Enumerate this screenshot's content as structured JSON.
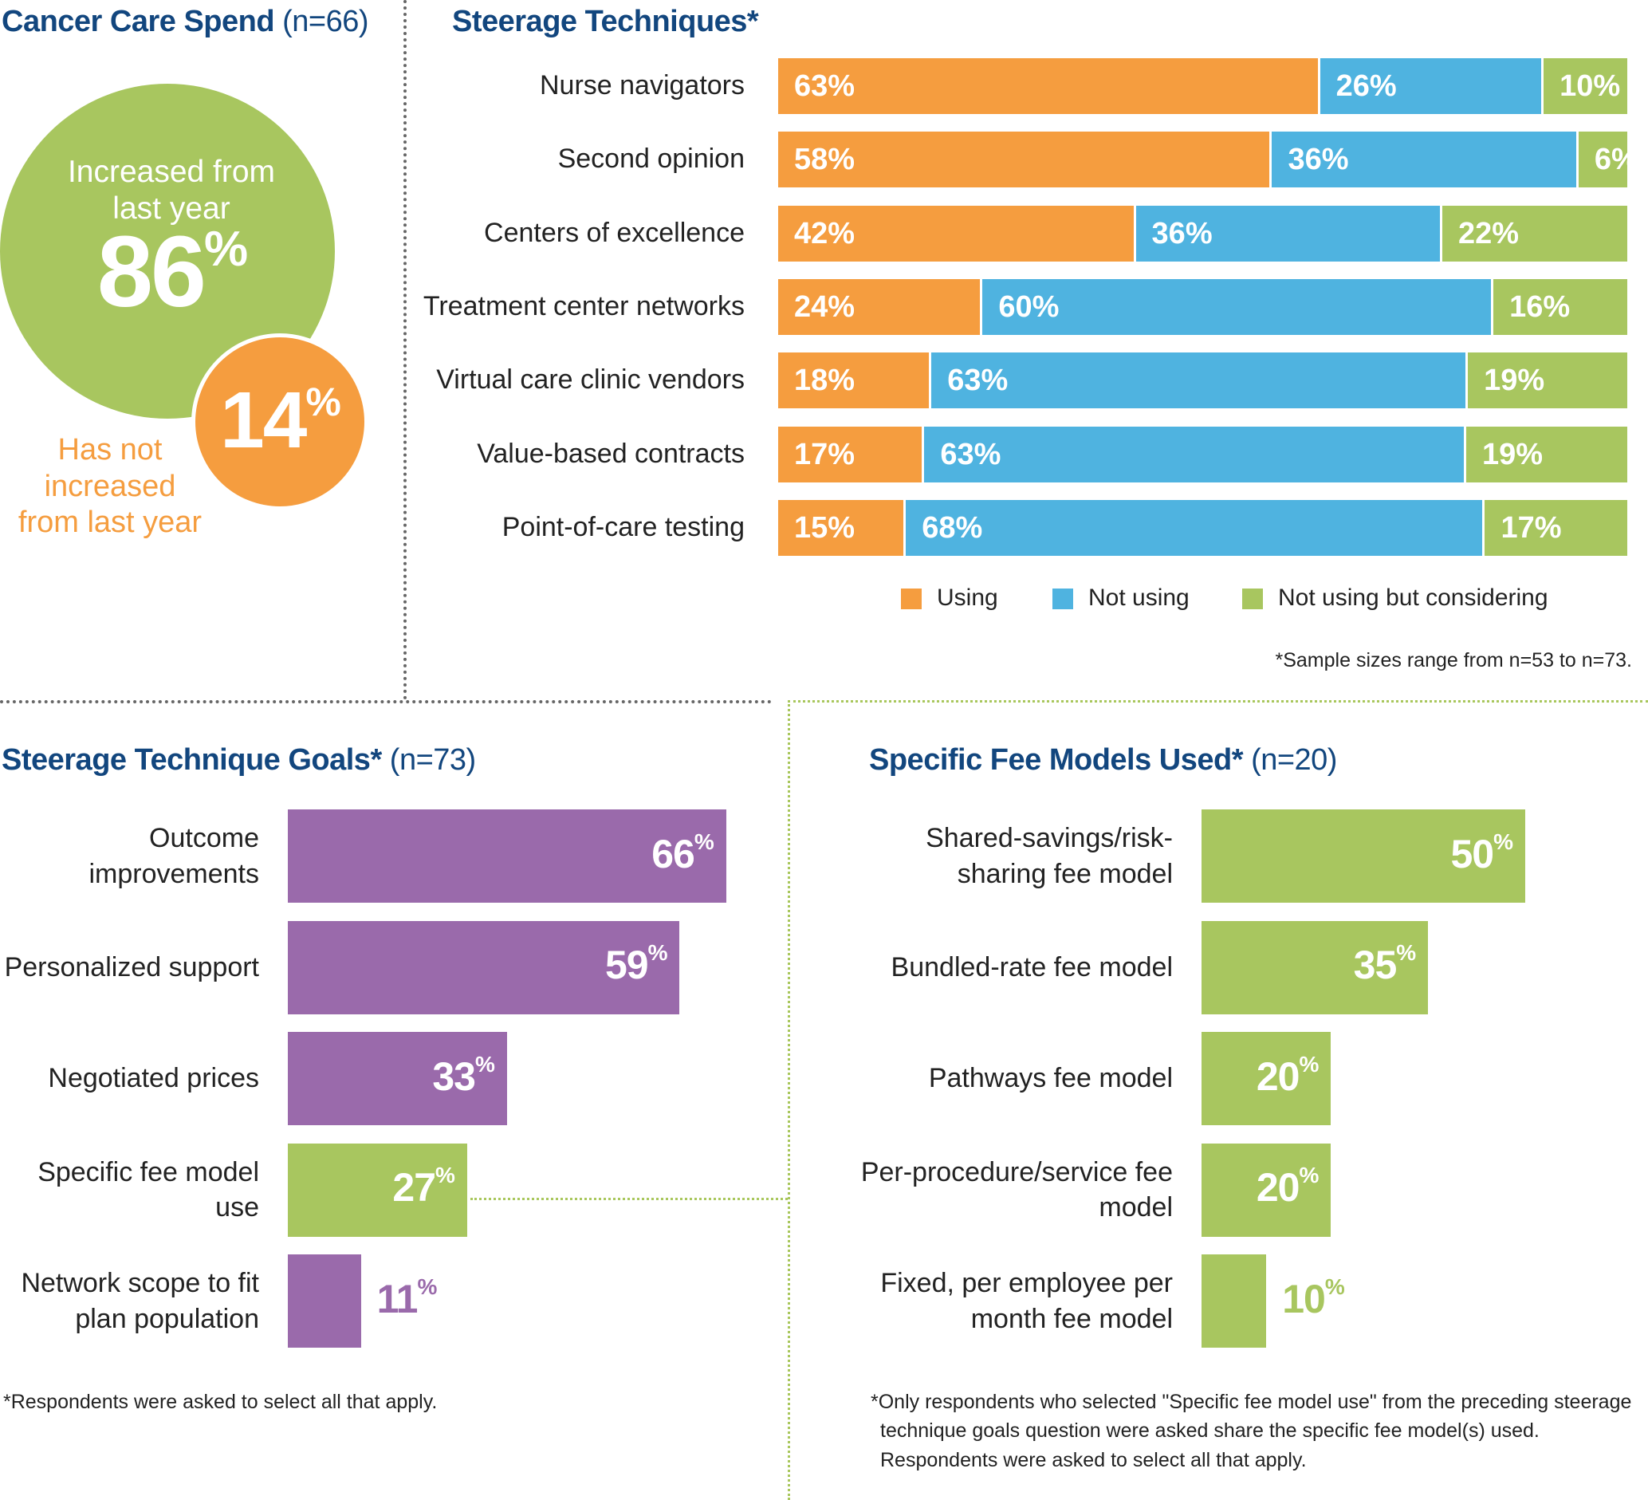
{
  "colors": {
    "using": "#f59d3f",
    "not_using": "#4fb3e0",
    "considering": "#a8c65f",
    "goals": "#9a6aab",
    "fee": "#a8c65f",
    "title": "#12467e"
  },
  "cancer_spend": {
    "title": "Cancer Care Spend",
    "n": "(n=66)",
    "increased_label_1": "Increased from",
    "increased_label_2": "last year",
    "increased_value": "86",
    "not_increased_value": "14",
    "percent_sign": "%",
    "not_increased_label_1": "Has not",
    "not_increased_label_2": "increased",
    "not_increased_label_3": "from last year"
  },
  "steerage": {
    "title": "Steerage Techniques*",
    "legend": [
      "Using",
      "Not using",
      "Not using but considering"
    ],
    "footnote": "*Sample sizes range from n=53 to n=73."
  },
  "goals": {
    "title": "Steerage Technique Goals*",
    "n": "(n=73)",
    "footnote": "*Respondents were asked to select all that apply."
  },
  "fees": {
    "title": "Specific Fee Models Used*",
    "n": "(n=20)",
    "footnote_1": "*Only respondents who selected \"Specific fee model use\" from the preceding steerage",
    "footnote_2": "technique goals question were asked share the specific fee model(s) used.",
    "footnote_3": "Respondents were asked to select all that apply."
  },
  "chart_data": [
    {
      "type": "pie",
      "title": "Cancer Care Spend",
      "categories": [
        "Increased from last year",
        "Has not increased from last year"
      ],
      "values": [
        86,
        14
      ]
    },
    {
      "type": "bar",
      "stacked": true,
      "orientation": "horizontal",
      "title": "Steerage Techniques*",
      "categories": [
        "Nurse navigators",
        "Second opinion",
        "Centers of excellence",
        "Treatment center networks",
        "Virtual care clinic vendors",
        "Value-based contracts",
        "Point-of-care testing"
      ],
      "series": [
        {
          "name": "Using",
          "values": [
            63,
            58,
            42,
            24,
            18,
            17,
            15
          ]
        },
        {
          "name": "Not using",
          "values": [
            26,
            36,
            36,
            60,
            63,
            63,
            68
          ]
        },
        {
          "name": "Not using but considering",
          "values": [
            10,
            6,
            22,
            16,
            19,
            19,
            17
          ]
        }
      ],
      "legend": "bottom"
    },
    {
      "type": "bar",
      "orientation": "horizontal",
      "title": "Steerage Technique Goals*",
      "categories": [
        "Outcome improvements",
        "Personalized support",
        "Negotiated prices",
        "Specific fee model use",
        "Network scope to fit plan population"
      ],
      "values": [
        66,
        59,
        33,
        27,
        11
      ]
    },
    {
      "type": "bar",
      "orientation": "horizontal",
      "title": "Specific Fee Models Used*",
      "categories": [
        "Shared-savings/risk-sharing fee model",
        "Bundled-rate fee model",
        "Pathways fee model",
        "Per-procedure/service fee model",
        "Fixed, per employee per month fee model"
      ],
      "values": [
        50,
        35,
        20,
        20,
        10
      ]
    }
  ]
}
